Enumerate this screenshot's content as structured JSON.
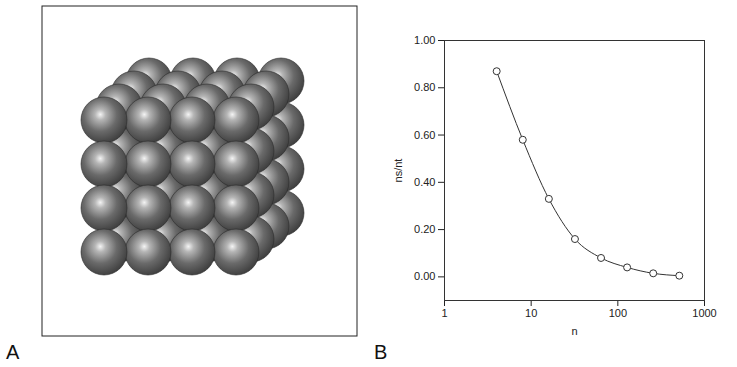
{
  "image_panel": {
    "label": "A"
  },
  "chart_data": {
    "label": "B",
    "type": "line",
    "marker": "circle",
    "color": "#333333",
    "x": [
      4,
      8,
      16,
      32,
      64,
      128,
      256,
      512
    ],
    "values": [
      0.87,
      0.58,
      0.33,
      0.16,
      0.08,
      0.04,
      0.015,
      0.005
    ],
    "xlabel": "n",
    "ylabel": "ns/nt",
    "log": "x",
    "xlim": [
      1,
      1000
    ],
    "xticks": [
      1,
      10,
      100,
      1000
    ],
    "ylim": [
      -0.1,
      1.0
    ],
    "yticks": [
      {
        "value": 0,
        "label": "0.00"
      },
      {
        "value": 0.2,
        "label": "0.20"
      },
      {
        "value": 0.4,
        "label": "0.40"
      },
      {
        "value": 0.6,
        "label": "0.60"
      },
      {
        "value": 0.8,
        "label": "0.80"
      },
      {
        "value": 1.0,
        "label": "1.00"
      }
    ]
  }
}
